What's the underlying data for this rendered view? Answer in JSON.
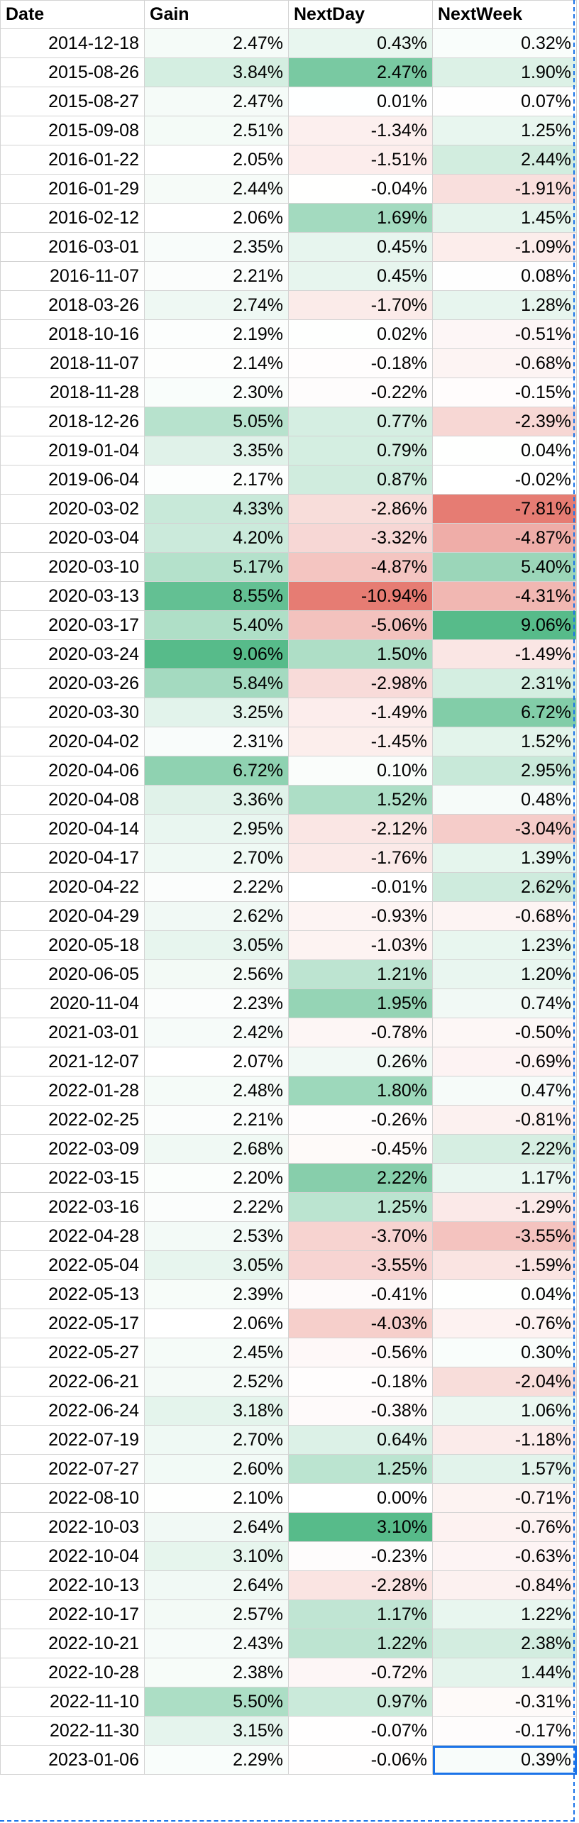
{
  "colors": {
    "pos_max": "#57bb8a",
    "neg_max": "#e67c73",
    "mid": "#ffffff",
    "selection": "#1a73e8"
  },
  "headers": [
    "Date",
    "Gain",
    "NextDay",
    "NextWeek"
  ],
  "rows": [
    [
      "2014-12-18",
      "2.47%",
      "0.43%",
      "0.32%"
    ],
    [
      "2015-08-26",
      "3.84%",
      "2.47%",
      "1.90%"
    ],
    [
      "2015-08-27",
      "2.47%",
      "0.01%",
      "0.07%"
    ],
    [
      "2015-09-08",
      "2.51%",
      "-1.34%",
      "1.25%"
    ],
    [
      "2016-01-22",
      "2.05%",
      "-1.51%",
      "2.44%"
    ],
    [
      "2016-01-29",
      "2.44%",
      "-0.04%",
      "-1.91%"
    ],
    [
      "2016-02-12",
      "2.06%",
      "1.69%",
      "1.45%"
    ],
    [
      "2016-03-01",
      "2.35%",
      "0.45%",
      "-1.09%"
    ],
    [
      "2016-11-07",
      "2.21%",
      "0.45%",
      "0.08%"
    ],
    [
      "2018-03-26",
      "2.74%",
      "-1.70%",
      "1.28%"
    ],
    [
      "2018-10-16",
      "2.19%",
      "0.02%",
      "-0.51%"
    ],
    [
      "2018-11-07",
      "2.14%",
      "-0.18%",
      "-0.68%"
    ],
    [
      "2018-11-28",
      "2.30%",
      "-0.22%",
      "-0.15%"
    ],
    [
      "2018-12-26",
      "5.05%",
      "0.77%",
      "-2.39%"
    ],
    [
      "2019-01-04",
      "3.35%",
      "0.79%",
      "0.04%"
    ],
    [
      "2019-06-04",
      "2.17%",
      "0.87%",
      "-0.02%"
    ],
    [
      "2020-03-02",
      "4.33%",
      "-2.86%",
      "-7.81%"
    ],
    [
      "2020-03-04",
      "4.20%",
      "-3.32%",
      "-4.87%"
    ],
    [
      "2020-03-10",
      "5.17%",
      "-4.87%",
      "5.40%"
    ],
    [
      "2020-03-13",
      "8.55%",
      "-10.94%",
      "-4.31%"
    ],
    [
      "2020-03-17",
      "5.40%",
      "-5.06%",
      "9.06%"
    ],
    [
      "2020-03-24",
      "9.06%",
      "1.50%",
      "-1.49%"
    ],
    [
      "2020-03-26",
      "5.84%",
      "-2.98%",
      "2.31%"
    ],
    [
      "2020-03-30",
      "3.25%",
      "-1.49%",
      "6.72%"
    ],
    [
      "2020-04-02",
      "2.31%",
      "-1.45%",
      "1.52%"
    ],
    [
      "2020-04-06",
      "6.72%",
      "0.10%",
      "2.95%"
    ],
    [
      "2020-04-08",
      "3.36%",
      "1.52%",
      "0.48%"
    ],
    [
      "2020-04-14",
      "2.95%",
      "-2.12%",
      "-3.04%"
    ],
    [
      "2020-04-17",
      "2.70%",
      "-1.76%",
      "1.39%"
    ],
    [
      "2020-04-22",
      "2.22%",
      "-0.01%",
      "2.62%"
    ],
    [
      "2020-04-29",
      "2.62%",
      "-0.93%",
      "-0.68%"
    ],
    [
      "2020-05-18",
      "3.05%",
      "-1.03%",
      "1.23%"
    ],
    [
      "2020-06-05",
      "2.56%",
      "1.21%",
      "1.20%"
    ],
    [
      "2020-11-04",
      "2.23%",
      "1.95%",
      "0.74%"
    ],
    [
      "2021-03-01",
      "2.42%",
      "-0.78%",
      "-0.50%"
    ],
    [
      "2021-12-07",
      "2.07%",
      "0.26%",
      "-0.69%"
    ],
    [
      "2022-01-28",
      "2.48%",
      "1.80%",
      "0.47%"
    ],
    [
      "2022-02-25",
      "2.21%",
      "-0.26%",
      "-0.81%"
    ],
    [
      "2022-03-09",
      "2.68%",
      "-0.45%",
      "2.22%"
    ],
    [
      "2022-03-15",
      "2.20%",
      "2.22%",
      "1.17%"
    ],
    [
      "2022-03-16",
      "2.22%",
      "1.25%",
      "-1.29%"
    ],
    [
      "2022-04-28",
      "2.53%",
      "-3.70%",
      "-3.55%"
    ],
    [
      "2022-05-04",
      "3.05%",
      "-3.55%",
      "-1.59%"
    ],
    [
      "2022-05-13",
      "2.39%",
      "-0.41%",
      "0.04%"
    ],
    [
      "2022-05-17",
      "2.06%",
      "-4.03%",
      "-0.76%"
    ],
    [
      "2022-05-27",
      "2.45%",
      "-0.56%",
      "0.30%"
    ],
    [
      "2022-06-21",
      "2.52%",
      "-0.18%",
      "-2.04%"
    ],
    [
      "2022-06-24",
      "3.18%",
      "-0.38%",
      "1.06%"
    ],
    [
      "2022-07-19",
      "2.70%",
      "0.64%",
      "-1.18%"
    ],
    [
      "2022-07-27",
      "2.60%",
      "1.25%",
      "1.57%"
    ],
    [
      "2022-08-10",
      "2.10%",
      "0.00%",
      "-0.71%"
    ],
    [
      "2022-10-03",
      "2.64%",
      "3.10%",
      "-0.76%"
    ],
    [
      "2022-10-04",
      "3.10%",
      "-0.23%",
      "-0.63%"
    ],
    [
      "2022-10-13",
      "2.64%",
      "-2.28%",
      "-0.84%"
    ],
    [
      "2022-10-17",
      "2.57%",
      "1.17%",
      "1.22%"
    ],
    [
      "2022-10-21",
      "2.43%",
      "1.22%",
      "2.38%"
    ],
    [
      "2022-10-28",
      "2.38%",
      "-0.72%",
      "1.44%"
    ],
    [
      "2022-11-10",
      "5.50%",
      "0.97%",
      "-0.31%"
    ],
    [
      "2022-11-30",
      "3.15%",
      "-0.07%",
      "-0.17%"
    ],
    [
      "2023-01-06",
      "2.29%",
      "-0.06%",
      "0.39%"
    ]
  ]
}
